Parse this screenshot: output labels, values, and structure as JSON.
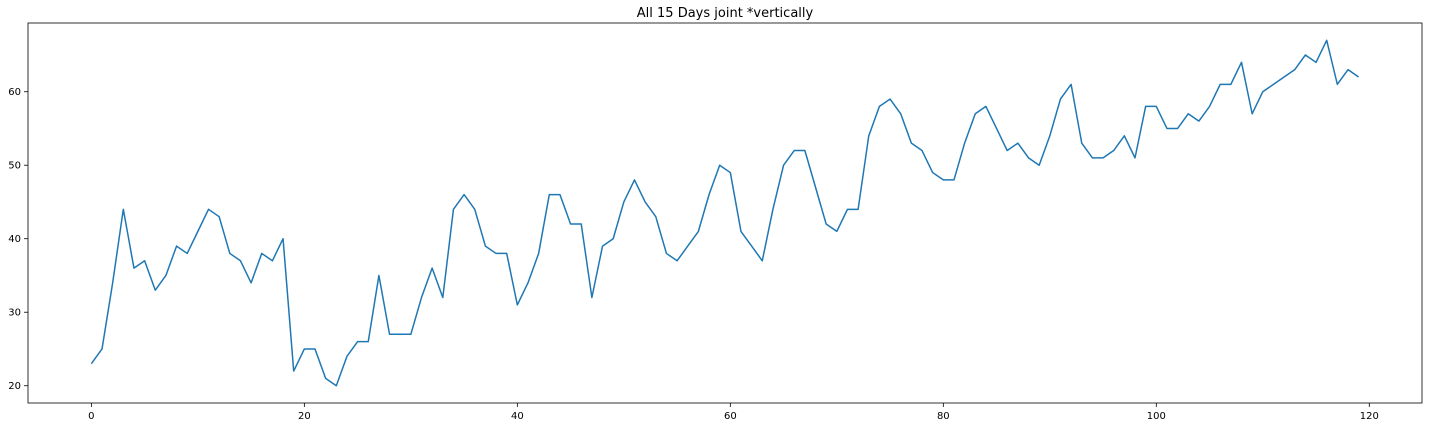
{
  "chart_data": {
    "type": "line",
    "title": "All 15 Days joint *vertically",
    "xlabel": "",
    "ylabel": "",
    "xlim": [
      -5.95,
      124.95
    ],
    "ylim": [
      17.65,
      69.35
    ],
    "xticks": [
      0,
      20,
      40,
      60,
      80,
      100,
      120
    ],
    "yticks": [
      20,
      30,
      40,
      50,
      60
    ],
    "grid": false,
    "line_color": "#1f77b4",
    "series": [
      {
        "x": [
          0,
          1,
          2,
          3,
          4,
          5,
          6,
          7,
          8,
          9,
          10,
          11,
          12,
          13,
          14,
          15,
          16,
          17,
          18,
          19,
          20,
          21,
          22,
          23,
          24,
          25,
          26,
          27,
          28,
          29,
          30,
          31,
          32,
          33,
          34,
          35,
          36,
          37,
          38,
          39,
          40,
          41,
          42,
          43,
          44,
          45,
          46,
          47,
          48,
          49,
          50,
          51,
          52,
          53,
          54,
          55,
          56,
          57,
          58,
          59,
          60,
          61,
          62,
          63,
          64,
          65,
          66,
          67,
          68,
          69,
          70,
          71,
          72,
          73,
          74,
          75,
          76,
          77,
          78,
          79,
          80,
          81,
          82,
          83,
          84,
          85,
          86,
          87,
          88,
          89,
          90,
          91,
          92,
          93,
          94,
          95,
          96,
          97,
          98,
          99,
          100,
          101,
          102,
          103,
          104,
          105,
          106,
          107,
          108,
          109,
          110,
          111,
          112,
          113,
          114,
          115,
          116,
          117,
          118,
          119
        ],
        "values": [
          23,
          25,
          34,
          44,
          36,
          37,
          33,
          35,
          39,
          38,
          41,
          44,
          43,
          38,
          37,
          34,
          38,
          37,
          40,
          22,
          25,
          25,
          21,
          20,
          24,
          26,
          26,
          35,
          27,
          27,
          27,
          32,
          36,
          32,
          44,
          46,
          44,
          39,
          38,
          38,
          31,
          34,
          38,
          46,
          46,
          42,
          42,
          32,
          39,
          40,
          45,
          48,
          45,
          43,
          38,
          37,
          39,
          41,
          46,
          50,
          49,
          41,
          39,
          37,
          44,
          50,
          52,
          52,
          47,
          42,
          41,
          44,
          44,
          54,
          58,
          59,
          57,
          53,
          52,
          49,
          48,
          48,
          53,
          57,
          58,
          55,
          52,
          53,
          51,
          50,
          54,
          59,
          61,
          53,
          51,
          51,
          52,
          54,
          51,
          58,
          58,
          55,
          55,
          57,
          56,
          58,
          61,
          61,
          64,
          57,
          60,
          61,
          62,
          63,
          65,
          64,
          67,
          61,
          63,
          62
        ]
      }
    ]
  }
}
